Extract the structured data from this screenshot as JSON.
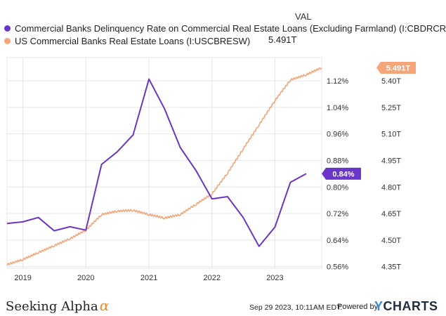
{
  "legend": {
    "header": "VAL",
    "series1_label": "Commercial Banks Delinquency Rate on Commercial Real Estate Loans   (Excluding Farmland) (I:CBDRCREL)",
    "series2_label": "US Commercial Banks Real Estate Loans (I:USCBRESW)",
    "series2_value": "5.491T"
  },
  "colors": {
    "series1": "#6a35c9",
    "series2": "#f5a57a",
    "grid": "#e6e6e6",
    "axis_text": "#333333"
  },
  "chart_data": {
    "type": "line",
    "x_ticks": [
      "2019",
      "2020",
      "2021",
      "2022",
      "2023"
    ],
    "y_left_ticks": [
      "1.12%",
      "1.04%",
      "0.96%",
      "0.88%",
      "0.80%",
      "0.72%",
      "0.64%",
      "0.56%"
    ],
    "y_right_ticks": [
      "5.40T",
      "5.25T",
      "5.10T",
      "4.95T",
      "4.80T",
      "4.65T",
      "4.50T",
      "4.35T"
    ],
    "ylim_left": [
      0.555,
      1.19
    ],
    "ylim_right": [
      4.33,
      5.55
    ],
    "xlim": [
      "2018-10-01",
      "2023-09-29"
    ],
    "grid": true,
    "series": [
      {
        "name": "Commercial Banks Delinquency Rate on Commercial Real Estate Loans (Excluding Farmland) (I:CBDRCREL)",
        "axis": "left",
        "last_label": "0.84%",
        "points": [
          [
            "2018-10-01",
            0.69
          ],
          [
            "2019-01-01",
            0.695
          ],
          [
            "2019-04-01",
            0.708
          ],
          [
            "2019-07-01",
            0.668
          ],
          [
            "2019-10-01",
            0.68
          ],
          [
            "2020-01-01",
            0.67
          ],
          [
            "2020-04-01",
            0.868
          ],
          [
            "2020-07-01",
            0.906
          ],
          [
            "2020-10-01",
            0.957
          ],
          [
            "2021-01-01",
            1.125
          ],
          [
            "2021-04-01",
            1.036
          ],
          [
            "2021-07-01",
            0.919
          ],
          [
            "2021-10-01",
            0.849
          ],
          [
            "2022-01-01",
            0.764
          ],
          [
            "2022-04-01",
            0.771
          ],
          [
            "2022-07-01",
            0.708
          ],
          [
            "2022-10-01",
            0.621
          ],
          [
            "2023-01-01",
            0.679
          ],
          [
            "2023-04-01",
            0.814
          ],
          [
            "2023-07-01",
            0.84
          ]
        ]
      },
      {
        "name": "US Commercial Banks Real Estate Loans (I:USCBRESW)",
        "axis": "right",
        "last_label": "5.491T",
        "points": [
          [
            "2018-10-01",
            4.35
          ],
          [
            "2019-01-01",
            4.38
          ],
          [
            "2019-04-01",
            4.42
          ],
          [
            "2019-07-01",
            4.46
          ],
          [
            "2019-10-01",
            4.5
          ],
          [
            "2020-01-01",
            4.55
          ],
          [
            "2020-04-01",
            4.64
          ],
          [
            "2020-07-01",
            4.66
          ],
          [
            "2020-10-01",
            4.665
          ],
          [
            "2021-01-01",
            4.64
          ],
          [
            "2021-04-01",
            4.62
          ],
          [
            "2021-07-01",
            4.64
          ],
          [
            "2021-10-01",
            4.7
          ],
          [
            "2022-01-01",
            4.76
          ],
          [
            "2022-04-01",
            4.88
          ],
          [
            "2022-07-01",
            5.02
          ],
          [
            "2022-10-01",
            5.16
          ],
          [
            "2023-01-01",
            5.3
          ],
          [
            "2023-04-01",
            5.42
          ],
          [
            "2023-07-01",
            5.45
          ],
          [
            "2023-09-29",
            5.491
          ]
        ]
      }
    ]
  },
  "footer": {
    "brand_name": "Seeking Alpha",
    "brand_symbol": "α",
    "timestamp": "Sep 29 2023, 10:11AM EDT.",
    "powered_by": "Powered by",
    "ycharts_y": "Y",
    "ycharts_rest": "CHARTS"
  }
}
